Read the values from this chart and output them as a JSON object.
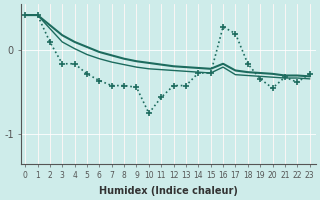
{
  "xlabel": "Humidex (Indice chaleur)",
  "bg_color": "#ceecea",
  "line_color": "#1d6b5e",
  "x_ticks": [
    0,
    1,
    2,
    3,
    4,
    5,
    6,
    7,
    8,
    9,
    10,
    11,
    12,
    13,
    14,
    15,
    16,
    17,
    18,
    19,
    20,
    21,
    22,
    23
  ],
  "y_ticks": [
    0,
    -1
  ],
  "ylim": [
    -1.35,
    0.55
  ],
  "xlim": [
    -0.3,
    23.5
  ],
  "line1": {
    "x": [
      0,
      1,
      2,
      3,
      4,
      5,
      6,
      7,
      8,
      9,
      10,
      11,
      12,
      13,
      14,
      15,
      16,
      17,
      18,
      19,
      20,
      21,
      22,
      23
    ],
    "y": [
      0.42,
      0.42,
      0.3,
      0.18,
      0.1,
      0.04,
      -0.02,
      -0.06,
      -0.1,
      -0.13,
      -0.15,
      -0.17,
      -0.19,
      -0.2,
      -0.21,
      -0.22,
      -0.16,
      -0.24,
      -0.26,
      -0.27,
      -0.28,
      -0.3,
      -0.3,
      -0.31
    ],
    "linewidth": 1.5,
    "linestyle": "solid"
  },
  "line2": {
    "x": [
      0,
      1,
      2,
      3,
      4,
      5,
      6,
      7,
      8,
      9,
      10,
      11,
      12,
      13,
      14,
      15,
      16,
      17,
      18,
      19,
      20,
      21,
      22,
      23
    ],
    "y": [
      0.42,
      0.42,
      0.26,
      0.1,
      0.02,
      -0.05,
      -0.1,
      -0.14,
      -0.17,
      -0.2,
      -0.22,
      -0.23,
      -0.24,
      -0.25,
      -0.26,
      -0.27,
      -0.2,
      -0.29,
      -0.3,
      -0.31,
      -0.32,
      -0.33,
      -0.33,
      -0.34
    ],
    "linewidth": 1.0,
    "linestyle": "solid"
  },
  "line3": {
    "x": [
      0,
      1,
      2,
      3,
      4,
      5,
      6,
      7,
      8,
      9,
      10,
      11,
      12,
      13,
      14,
      15,
      16,
      17,
      18,
      19,
      20,
      21,
      22,
      23
    ],
    "y": [
      0.42,
      0.42,
      0.1,
      -0.16,
      -0.16,
      -0.28,
      -0.36,
      -0.42,
      -0.42,
      -0.44,
      -0.75,
      -0.56,
      -0.42,
      -0.42,
      -0.27,
      -0.27,
      0.28,
      0.2,
      -0.16,
      -0.34,
      -0.45,
      -0.32,
      -0.38,
      -0.28
    ],
    "linewidth": 1.2,
    "linestyle": "dotted",
    "marker": "+"
  }
}
